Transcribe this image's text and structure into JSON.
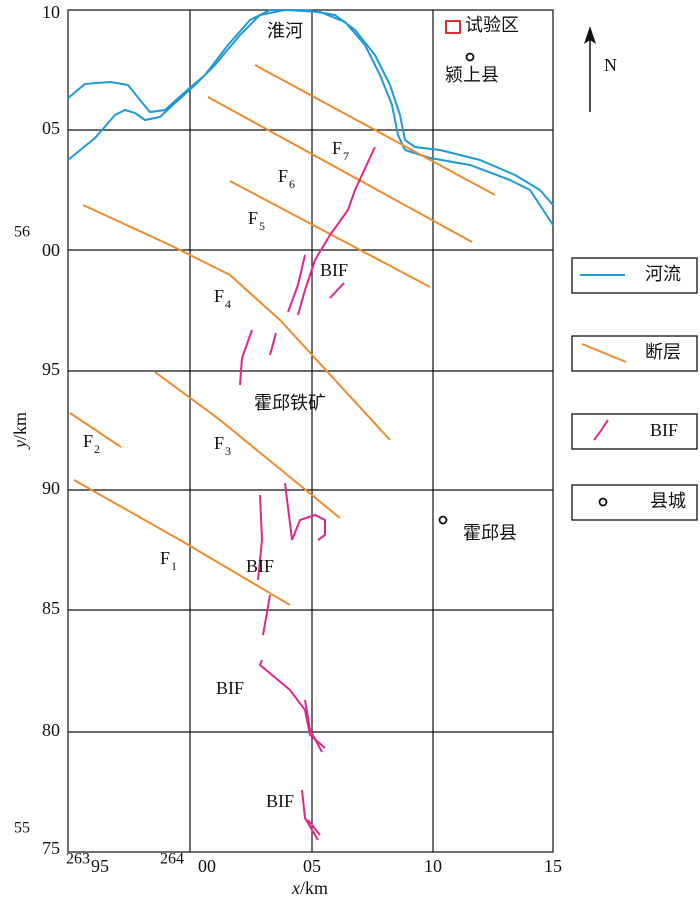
{
  "map": {
    "river_name": "淮河",
    "test_area": "试验区",
    "north": "N",
    "towns": [
      "颍上县",
      "霍邱县"
    ],
    "mine": "霍邱铁矿",
    "bif_labels": [
      "BIF",
      "BIF",
      "BIF",
      "BIF"
    ],
    "faults": [
      {
        "letter": "F",
        "sub": "1"
      },
      {
        "letter": "F",
        "sub": "2"
      },
      {
        "letter": "F",
        "sub": "3"
      },
      {
        "letter": "F",
        "sub": "4"
      },
      {
        "letter": "F",
        "sub": "5"
      },
      {
        "letter": "F",
        "sub": "6"
      },
      {
        "letter": "F",
        "sub": "7"
      }
    ]
  },
  "y_axis": {
    "var": "y",
    "unit": "/km",
    "ticks": [
      "10",
      "05",
      "00",
      "95",
      "90",
      "85",
      "80",
      "75"
    ],
    "prefixes": [
      "56",
      "55"
    ]
  },
  "x_axis": {
    "var": "x",
    "unit": "/km",
    "ticks": [
      "95",
      "00",
      "05",
      "10",
      "15"
    ],
    "prefixes": [
      "263",
      "264"
    ]
  },
  "legend": [
    "河流",
    "断层",
    "BIF",
    "县城"
  ]
}
